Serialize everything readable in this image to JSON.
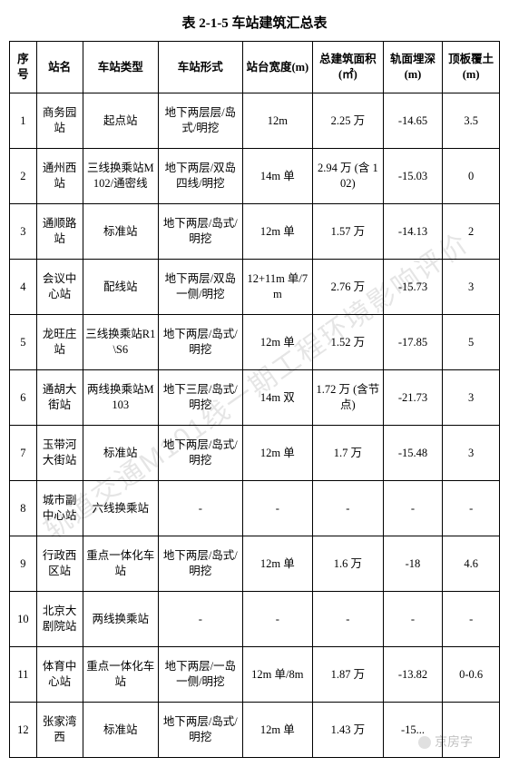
{
  "title": "表 2-1-5    车站建筑汇总表",
  "watermark_text": "轨道交通M101线一期工程环境影响评价",
  "corner_mark": "京房字",
  "columns": [
    "序号",
    "站名",
    "车站类型",
    "车站形式",
    "站台宽度(m)",
    "总建筑面积(㎡)",
    "轨面埋深(m)",
    "顶板覆土(m)"
  ],
  "rows": [
    {
      "idx": "1",
      "name": "商务园站",
      "type": "起点站",
      "form": "地下两层层/岛式/明挖",
      "width": "12m",
      "area": "2.25 万",
      "depth": "-14.65",
      "cover": "3.5"
    },
    {
      "idx": "2",
      "name": "通州西站",
      "type": "三线换乘站M102/通密线",
      "form": "地下两层/双岛四线/明挖",
      "width": "14m 单",
      "area": "2.94 万 (含 102)",
      "depth": "-15.03",
      "cover": "0"
    },
    {
      "idx": "3",
      "name": "通顺路站",
      "type": "标准站",
      "form": "地下两层/岛式/明挖",
      "width": "12m 单",
      "area": "1.57 万",
      "depth": "-14.13",
      "cover": "2"
    },
    {
      "idx": "4",
      "name": "会议中心站",
      "type": "配线站",
      "form": "地下两层/双岛一侧/明挖",
      "width": "12+11m 单/7m",
      "area": "2.76 万",
      "depth": "-15.73",
      "cover": "3"
    },
    {
      "idx": "5",
      "name": "龙旺庄站",
      "type": "三线换乘站R1\\S6",
      "form": "地下两层/岛式/明挖",
      "width": "12m 单",
      "area": "1.52 万",
      "depth": "-17.85",
      "cover": "5"
    },
    {
      "idx": "6",
      "name": "通胡大街站",
      "type": "两线换乘站M103",
      "form": "地下三层/岛式/明挖",
      "width": "14m 双",
      "area": "1.72 万 (含节点)",
      "depth": "-21.73",
      "cover": "3"
    },
    {
      "idx": "7",
      "name": "玉带河大街站",
      "type": "标准站",
      "form": "地下两层/岛式/明挖",
      "width": "12m 单",
      "area": "1.7 万",
      "depth": "-15.48",
      "cover": "3"
    },
    {
      "idx": "8",
      "name": "城市副中心站",
      "type": "六线换乘站",
      "form": "-",
      "width": "-",
      "area": "-",
      "depth": "-",
      "cover": "-"
    },
    {
      "idx": "9",
      "name": "行政西区站",
      "type": "重点一体化车站",
      "form": "地下两层/岛式/明挖",
      "width": "12m 单",
      "area": "1.6 万",
      "depth": "-18",
      "cover": "4.6"
    },
    {
      "idx": "10",
      "name": "北京大剧院站",
      "type": "两线换乘站",
      "form": "-",
      "width": "-",
      "area": "-",
      "depth": "-",
      "cover": "-"
    },
    {
      "idx": "11",
      "name": "体育中心站",
      "type": "重点一体化车站",
      "form": "地下两层/一岛一侧/明挖",
      "width": "12m 单/8m",
      "area": "1.87 万",
      "depth": "-13.82",
      "cover": "0-0.6"
    },
    {
      "idx": "12",
      "name": "张家湾西",
      "type": "标准站",
      "form": "地下两层/岛式/明挖",
      "width": "12m 单",
      "area": "1.43 万",
      "depth": "-15...",
      "cover": ""
    }
  ]
}
